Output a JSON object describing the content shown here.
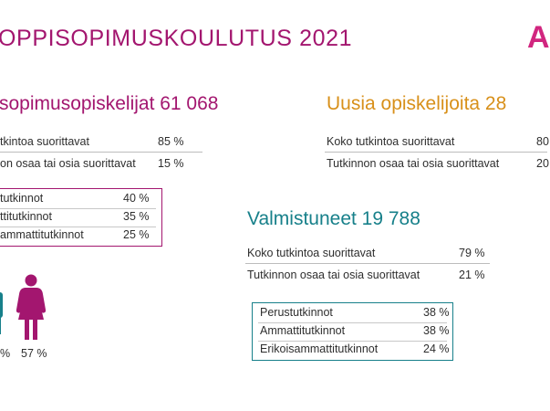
{
  "title": "OPPISOPIMUSKOULUTUS 2021",
  "logo_text": "A",
  "colors": {
    "magenta": "#a3166f",
    "orange": "#d8901a",
    "teal": "#17808a",
    "logo": "#d1267f"
  },
  "students": {
    "heading": "sopimusopiskelijat 61 068",
    "rows": [
      {
        "label": "tkintoa suorittavat",
        "value": "85 %"
      },
      {
        "label": "on osaa tai osia suorittavat",
        "value": "15 %"
      }
    ],
    "box": [
      {
        "label": "tutkinnot",
        "value": "40 %"
      },
      {
        "label": "ttitutkinnot",
        "value": "35 %"
      },
      {
        "label": "ammattitutkinnot",
        "value": "25 %"
      }
    ],
    "gender": {
      "woman_icon": "woman-icon",
      "woman_value": "57 %",
      "man_value": ""
    }
  },
  "new_students": {
    "heading": "Uusia opiskelijoita 28",
    "rows": [
      {
        "label": "Koko tutkintoa suorittavat",
        "value": "80"
      },
      {
        "label": "Tutkinnon osaa tai osia suorittavat",
        "value": "20"
      }
    ]
  },
  "graduates": {
    "heading": "Valmistuneet 19 788",
    "rows": [
      {
        "label": "Koko tutkintoa suorittavat",
        "value": "79 %"
      },
      {
        "label": "Tutkinnon osaa tai osia suorittavat",
        "value": "21 %"
      }
    ],
    "box": [
      {
        "label": "Perustutkinnot",
        "value": "38 %"
      },
      {
        "label": "Ammattitutkinnot",
        "value": "38 %"
      },
      {
        "label": "Erikoisammattitutkinnot",
        "value": "24 %"
      }
    ]
  }
}
